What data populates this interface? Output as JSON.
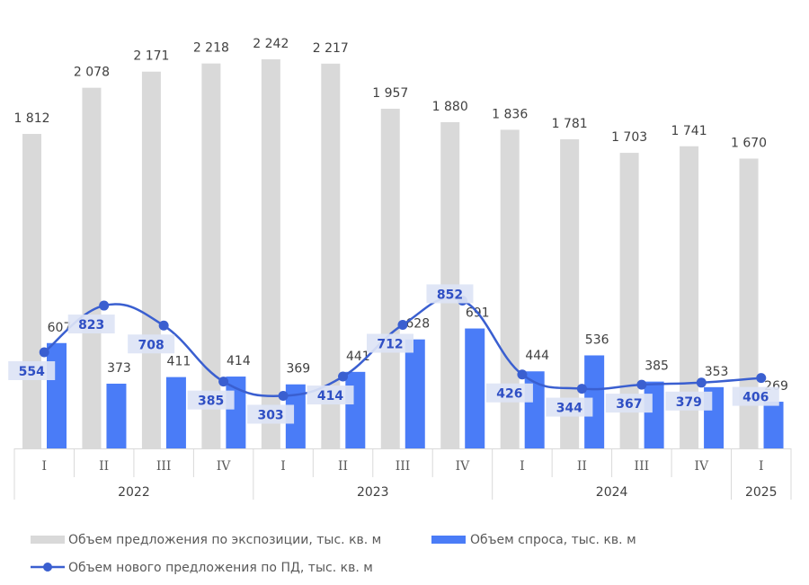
{
  "chart_data": {
    "type": "bar",
    "categories": [
      {
        "quarter": "I",
        "year": "2022"
      },
      {
        "quarter": "II",
        "year": "2022"
      },
      {
        "quarter": "III",
        "year": "2022"
      },
      {
        "quarter": "IV",
        "year": "2022"
      },
      {
        "quarter": "I",
        "year": "2023"
      },
      {
        "quarter": "II",
        "year": "2023"
      },
      {
        "quarter": "III",
        "year": "2023"
      },
      {
        "quarter": "IV",
        "year": "2023"
      },
      {
        "quarter": "I",
        "year": "2024"
      },
      {
        "quarter": "II",
        "year": "2024"
      },
      {
        "quarter": "III",
        "year": "2024"
      },
      {
        "quarter": "IV",
        "year": "2024"
      },
      {
        "quarter": "I",
        "year": "2025"
      }
    ],
    "years": [
      "2022",
      "2023",
      "2024",
      "2025"
    ],
    "series": [
      {
        "name": "Объем предложения по экспозиции, тыс. кв. м",
        "type": "bar",
        "color": "#d9d9d9",
        "values": [
          1812,
          2078,
          2171,
          2218,
          2242,
          2217,
          1957,
          1880,
          1836,
          1781,
          1703,
          1741,
          1670
        ],
        "labels": [
          "1 812",
          "2 078",
          "2 171",
          "2 218",
          "2 242",
          "2 217",
          "1 957",
          "1 880",
          "1 836",
          "1 781",
          "1 703",
          "1 741",
          "1 670"
        ]
      },
      {
        "name": "Объем спроса, тыс. кв. м",
        "type": "bar",
        "color": "#4a7cf7",
        "values": [
          607,
          373,
          411,
          414,
          369,
          441,
          628,
          691,
          444,
          536,
          385,
          353,
          269
        ],
        "labels": [
          "607",
          "373",
          "411",
          "414",
          "369",
          "441",
          "628",
          "691",
          "444",
          "536",
          "385",
          "353",
          "269"
        ]
      },
      {
        "name": "Объем нового предложения по ПД, тыс. кв. м",
        "type": "line",
        "color": "#3a5fd0",
        "smooth": true,
        "values": [
          554,
          823,
          708,
          385,
          303,
          414,
          712,
          852,
          426,
          344,
          367,
          379,
          406
        ],
        "labels": [
          "554",
          "823",
          "708",
          "385",
          "303",
          "414",
          "712",
          "852",
          "426",
          "344",
          "367",
          "379",
          "406"
        ]
      }
    ],
    "ylim": [
      0,
      2300
    ],
    "grid": false,
    "legend_position": "bottom"
  }
}
